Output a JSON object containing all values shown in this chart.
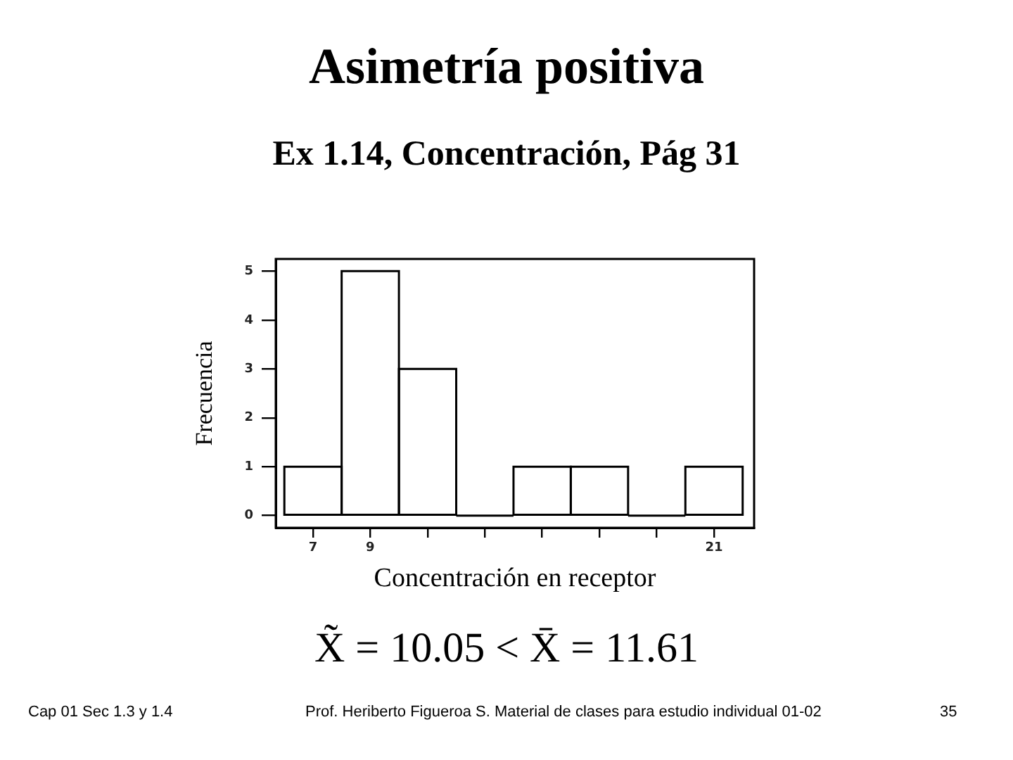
{
  "chart_data": {
    "type": "histogram",
    "title": "Asimetría positiva",
    "subtitle": "Ex 1.14, Concentración, Pág 31",
    "xlabel": "Concentración en receptor",
    "ylabel": "Frecuencia",
    "bins": [
      6,
      8,
      10,
      12,
      14,
      16,
      18,
      20,
      22
    ],
    "values": [
      1,
      5,
      3,
      0,
      1,
      1,
      0,
      1
    ],
    "color": "#000000",
    "xlim": [
      5.7,
      22.4
    ],
    "xticks": [
      7,
      9,
      {
        "value": 11,
        "label": null
      },
      {
        "value": 13,
        "label": null
      },
      {
        "value": 15,
        "label": null
      },
      {
        "value": 17,
        "label": null
      },
      {
        "value": 19,
        "label": null
      },
      21
    ],
    "ylim": [
      -0.25,
      5.25
    ],
    "yticks": [
      0,
      1,
      2,
      3,
      4,
      5
    ],
    "annotations": [
      "X̃ = 10.05 < X̄ = 11.61",
      "Cap 01 Sec 1.3 y 1.4",
      "Prof. Heriberto Figueroa S. Material de clases para estudio individual 01-02",
      "35"
    ]
  }
}
